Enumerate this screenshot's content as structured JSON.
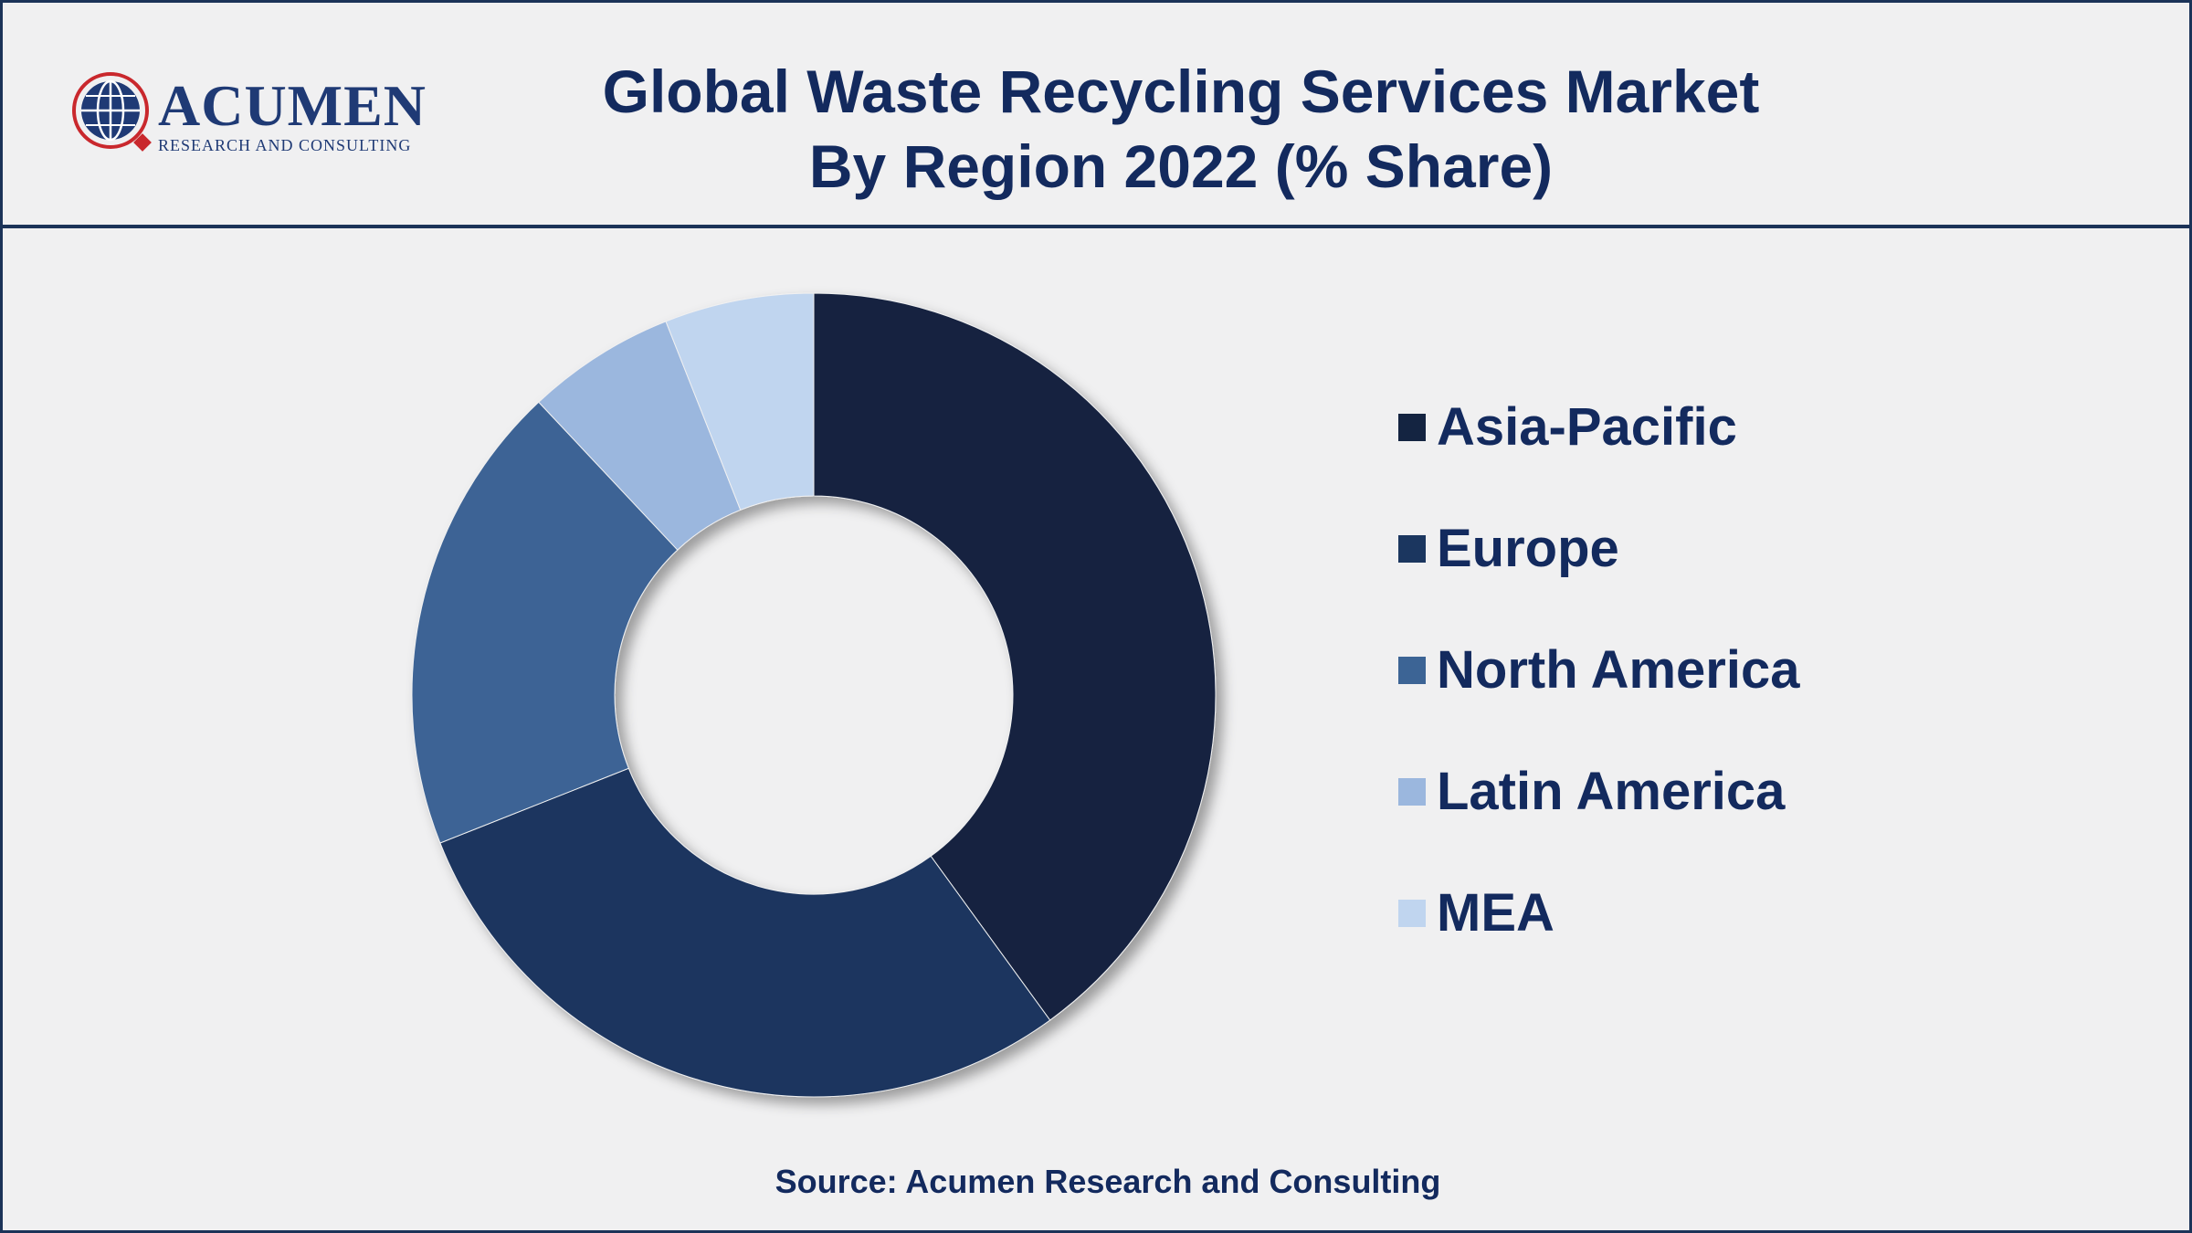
{
  "logo": {
    "name": "ACUMEN",
    "tagline": "RESEARCH AND CONSULTING"
  },
  "title_lines": [
    "Global Waste Recycling Services Market",
    "By Region 2022 (% Share)"
  ],
  "chart_data": {
    "type": "pie",
    "donut": true,
    "title": "Global Waste Recycling Services Market By Region 2022 (% Share)",
    "categories": [
      "Asia-Pacific",
      "Europe",
      "North America",
      "Latin America",
      "MEA"
    ],
    "values": [
      40,
      29,
      19,
      6,
      6
    ],
    "unit": "%",
    "colors": [
      "#142441",
      "#1b365f",
      "#3c6495",
      "#9bb7de",
      "#c0d5ef"
    ],
    "legend_position": "right"
  },
  "source": "Source: Acumen Research and Consulting"
}
